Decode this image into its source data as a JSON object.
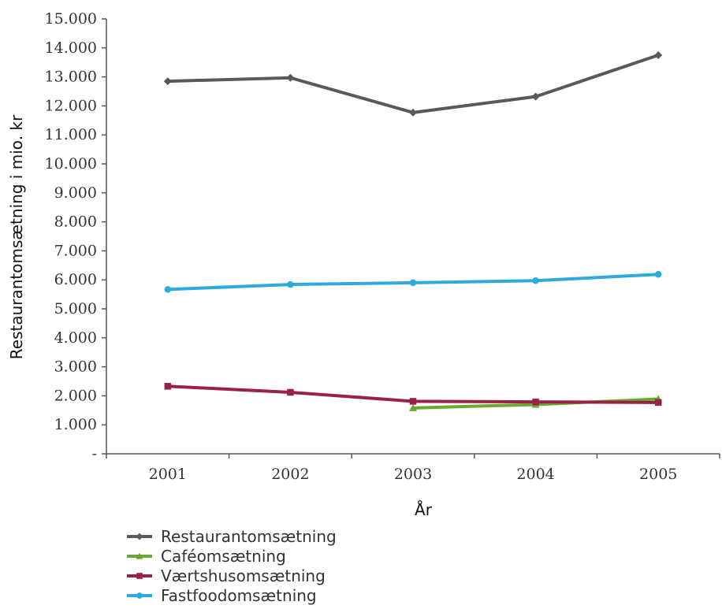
{
  "chart_data": {
    "type": "line",
    "categories": [
      "2001",
      "2002",
      "2003",
      "2004",
      "2005"
    ],
    "xlabel": "År",
    "ylabel": "Restaurantomsætning i mio. kr",
    "ylim": [
      0,
      15000
    ],
    "yticks": [
      0,
      1000,
      2000,
      3000,
      4000,
      5000,
      6000,
      7000,
      8000,
      9000,
      10000,
      11000,
      12000,
      13000,
      14000,
      15000
    ],
    "ytick_labels": [
      "-",
      "1.000",
      "2.000",
      "3.000",
      "4.000",
      "5.000",
      "6.000",
      "7.000",
      "8.000",
      "9.000",
      "10.000",
      "11.000",
      "12.000",
      "13.000",
      "14.000",
      "15.000"
    ],
    "grid": false,
    "legend_position": "bottom-left",
    "series": [
      {
        "name": "Restaurantomsætning",
        "color": "#595959",
        "marker": "diamond",
        "values": [
          12850,
          12970,
          11770,
          12320,
          13750
        ]
      },
      {
        "name": "Caféomsætning",
        "color": "#66aa33",
        "marker": "triangle",
        "values": [
          null,
          null,
          1580,
          1700,
          1890
        ]
      },
      {
        "name": "Værtshusomsætning",
        "color": "#992244",
        "marker": "square",
        "values": [
          2330,
          2120,
          1810,
          1790,
          1770
        ]
      },
      {
        "name": "Fastfoodomsætning",
        "color": "#2eaadd",
        "marker": "circle",
        "values": [
          5670,
          5840,
          5900,
          5970,
          6190
        ]
      }
    ]
  }
}
